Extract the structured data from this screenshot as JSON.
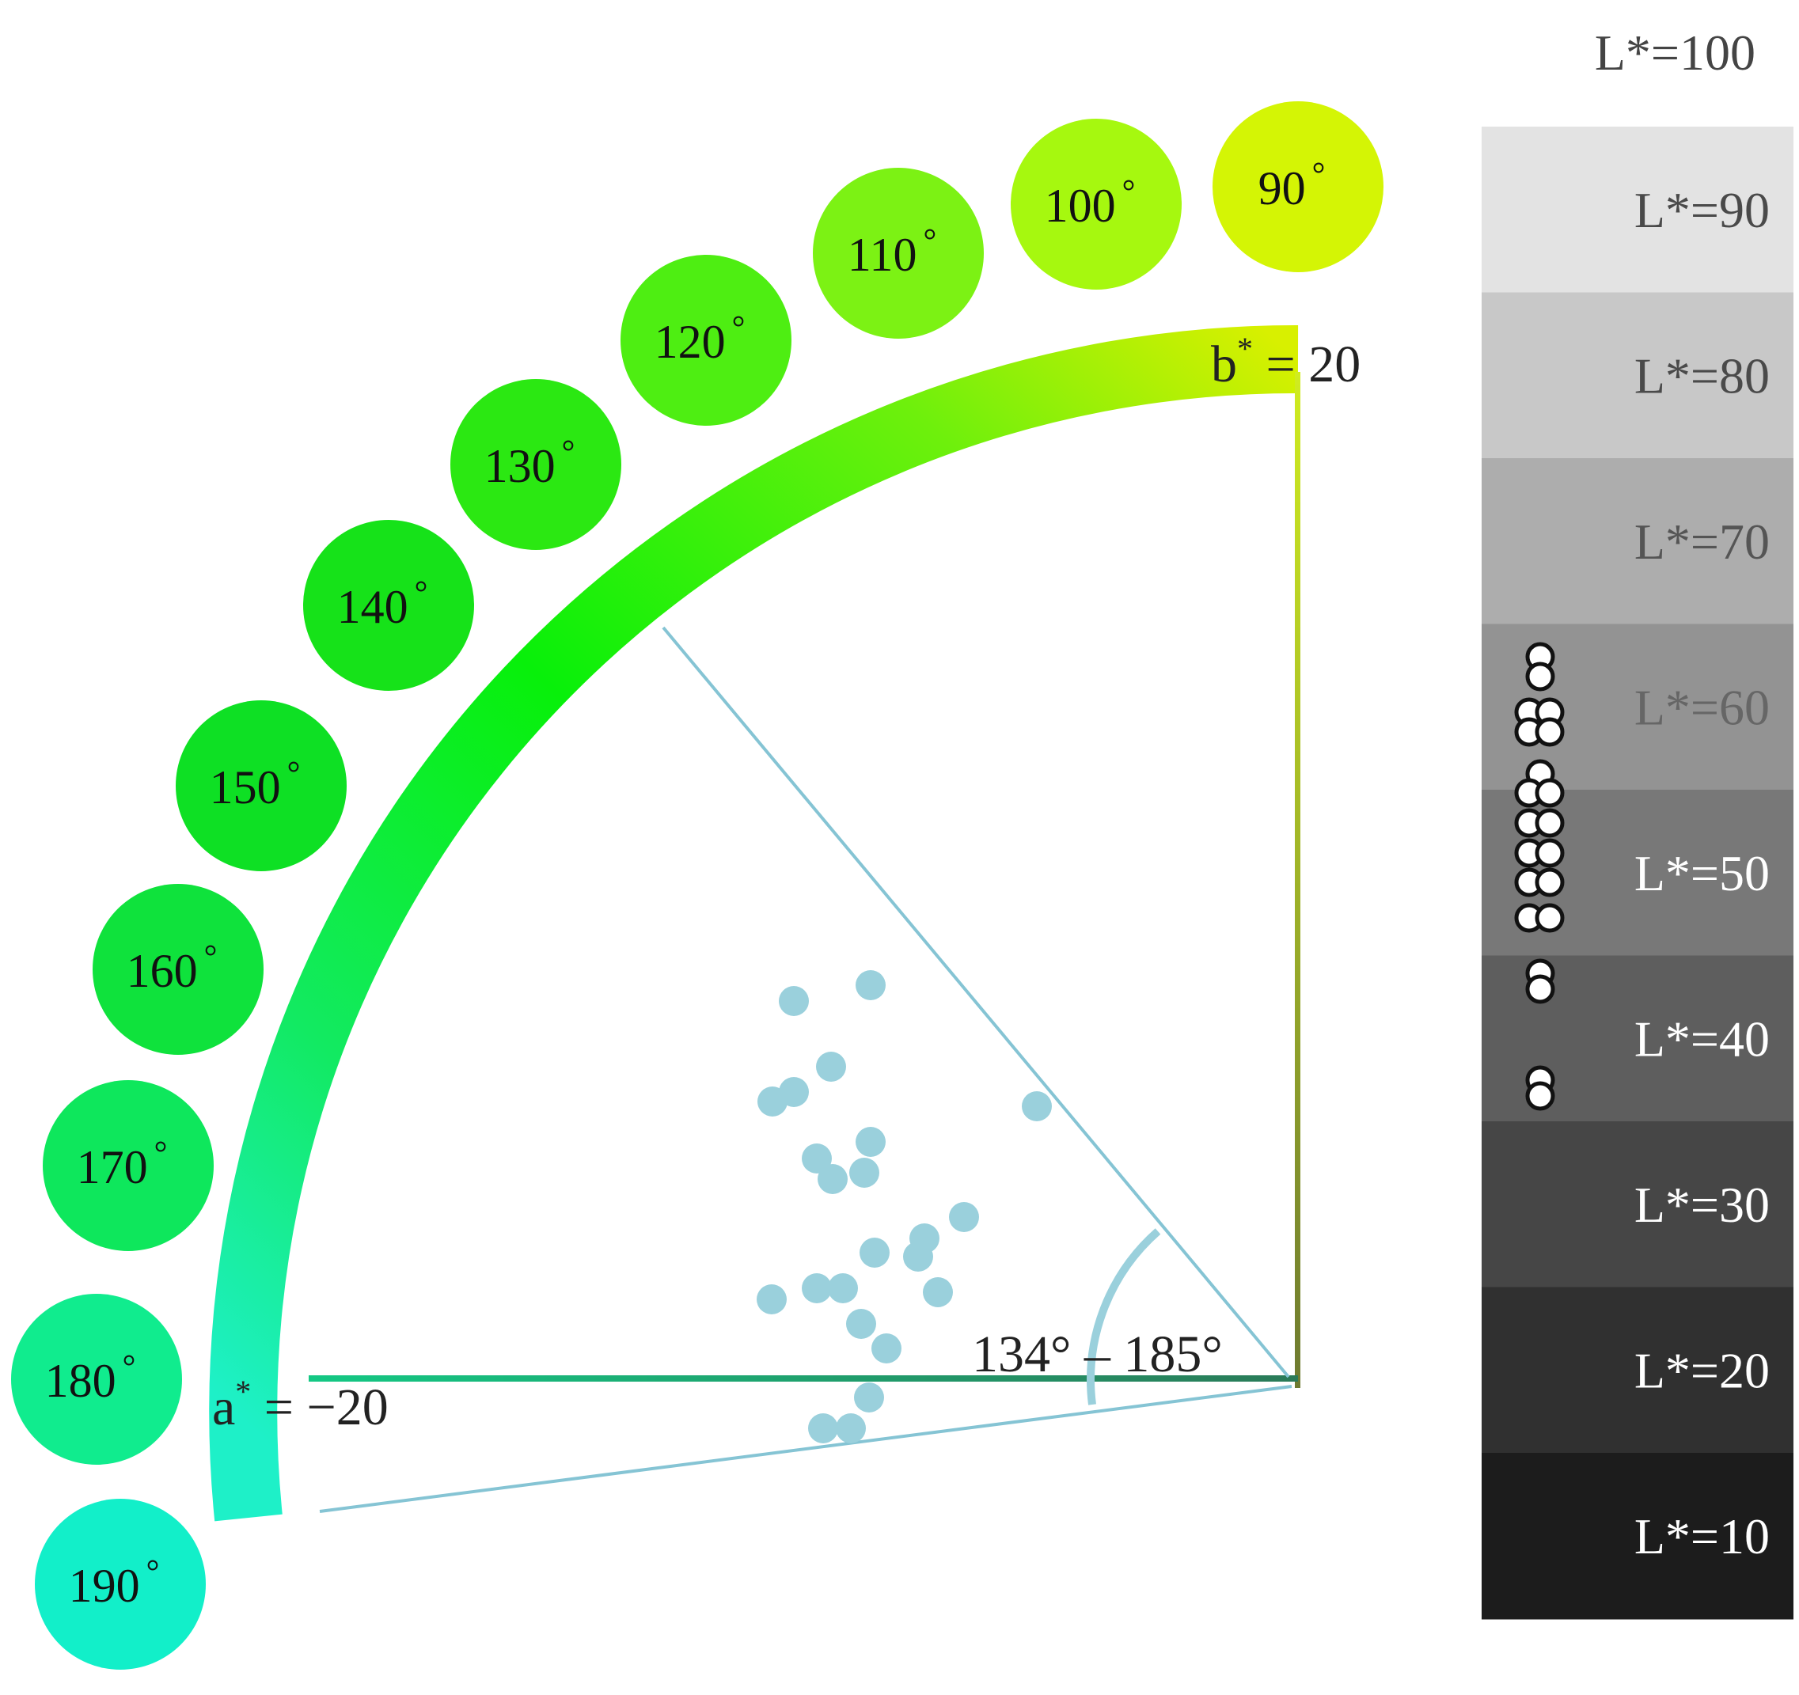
{
  "hue_circles": [
    {
      "label": "90",
      "color": "#d4f505",
      "deg_mark": "°"
    },
    {
      "label": "100",
      "color": "#a6f80f",
      "deg_mark": "°"
    },
    {
      "label": "110",
      "color": "#7cf214",
      "deg_mark": "°"
    },
    {
      "label": "120",
      "color": "#4eee12",
      "deg_mark": "°"
    },
    {
      "label": "130",
      "color": "#2be812",
      "deg_mark": "°"
    },
    {
      "label": "140",
      "color": "#16e219",
      "deg_mark": "°"
    },
    {
      "label": "150",
      "color": "#0ee024",
      "deg_mark": "°"
    },
    {
      "label": "160",
      "color": "#0fe23c",
      "deg_mark": "°"
    },
    {
      "label": "170",
      "color": "#0ee75c",
      "deg_mark": "°"
    },
    {
      "label": "180",
      "color": "#10ec8e",
      "deg_mark": "°"
    },
    {
      "label": "190",
      "color": "#12efc9",
      "deg_mark": "°"
    }
  ],
  "axes": {
    "b_label": {
      "base": "b",
      "sup": "*",
      "rest": " = 20"
    },
    "a_label": {
      "base": "a",
      "sup": "*",
      "rest": " = −20"
    }
  },
  "hue_range_label": "134° – 185°",
  "lightness_scale": {
    "top_label": "L*=100",
    "bands": [
      {
        "label": "L*=90",
        "fill": "#e3e3e3",
        "text": "#4a4a4a"
      },
      {
        "label": "L*=80",
        "fill": "#c8c8c8",
        "text": "#4a4a4a"
      },
      {
        "label": "L*=70",
        "fill": "#adadad",
        "text": "#555555"
      },
      {
        "label": "L*=60",
        "fill": "#939393",
        "text": "#666666"
      },
      {
        "label": "L*=50",
        "fill": "#787878",
        "text": "#ffffff"
      },
      {
        "label": "L*=40",
        "fill": "#5e5e5e",
        "text": "#ffffff"
      },
      {
        "label": "L*=30",
        "fill": "#464646",
        "text": "#ffffff"
      },
      {
        "label": "L*=20",
        "fill": "#303030",
        "text": "#ffffff"
      },
      {
        "label": "L*=10",
        "fill": "#1c1c1c",
        "text": "#ffffff"
      }
    ]
  },
  "colors": {
    "scatter_point": "#9ad0dc",
    "sector_line": "#85c4d4",
    "arc_start": "#1ef0c8",
    "arc_mid": "#08f00a",
    "arc_end": "#d8f000"
  }
}
